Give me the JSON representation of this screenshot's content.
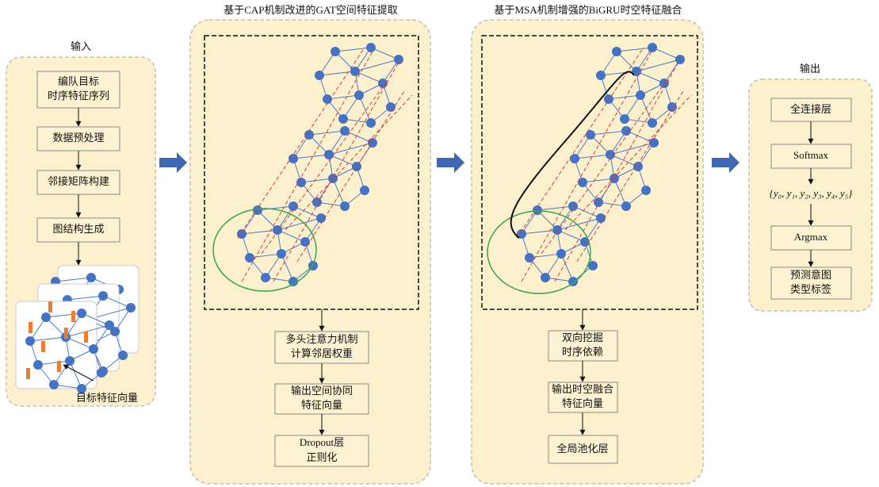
{
  "panels": [
    {
      "title": "输入",
      "steps": [
        [
          "编队目标",
          "时序特征序列"
        ],
        [
          "数据预处理"
        ],
        [
          "邻接矩阵构建"
        ],
        [
          "图结构生成"
        ]
      ],
      "caption": "目标特征向量"
    },
    {
      "title": "基于CAP机制改进的GAT空间特征提取",
      "steps": [
        [
          "多头注意力机制",
          "计算邻居权重"
        ],
        [
          "输出空间协同",
          "特征向量"
        ],
        [
          "Dropout层",
          "正则化"
        ]
      ]
    },
    {
      "title": "基于MSA机制增强的BiGRU时空特征融合",
      "steps": [
        [
          "双向挖掘",
          "时序依赖"
        ],
        [
          "输出时空融合",
          "特征向量"
        ],
        [
          "全局池化层"
        ]
      ]
    },
    {
      "title": "输出",
      "steps": [
        [
          "全连接层"
        ],
        [
          "Softmax"
        ],
        [
          "{y₀, y₁, y₂, y₃, y₄, y₅}"
        ],
        [
          "Argmax"
        ],
        [
          "预测意图",
          "类型标签"
        ]
      ]
    }
  ]
}
